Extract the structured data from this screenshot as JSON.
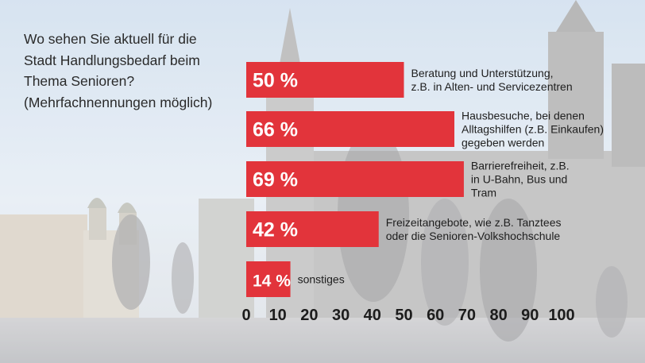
{
  "question": "Wo sehen Sie aktuell für die Stadt Handlungsbedarf beim Thema Senioren? (Mehrfachnennungen möglich)",
  "chart_data": {
    "type": "bar",
    "orientation": "horizontal",
    "title": "Wo sehen Sie aktuell für die Stadt Handlungsbedarf beim Thema Senioren? (Mehrfachnennungen möglich)",
    "xlim": [
      0,
      100
    ],
    "xticks": [
      0,
      10,
      20,
      30,
      40,
      50,
      60,
      70,
      80,
      90,
      100
    ],
    "bar_color": "#e2343b",
    "bars": [
      {
        "value": 50,
        "label": "50 %",
        "category": [
          "Beratung und Unterstützung,",
          "z.B. in Alten- und Servicezentren"
        ]
      },
      {
        "value": 66,
        "label": "66 %",
        "category": [
          "Hausbesuche, bei denen",
          "Alltagshilfen (z.B. Einkaufen)",
          "gegeben werden"
        ]
      },
      {
        "value": 69,
        "label": "69 %",
        "category": [
          "Barrierefreiheit, z.B.",
          "in U-Bahn, Bus und",
          "Tram"
        ]
      },
      {
        "value": 42,
        "label": "42 %",
        "category": [
          "Freizeitangebote, wie z.B. Tanztees",
          "oder die Senioren-Volkshochschule"
        ]
      },
      {
        "value": 14,
        "label": "14 %",
        "category": [
          "sonstiges"
        ]
      }
    ]
  }
}
